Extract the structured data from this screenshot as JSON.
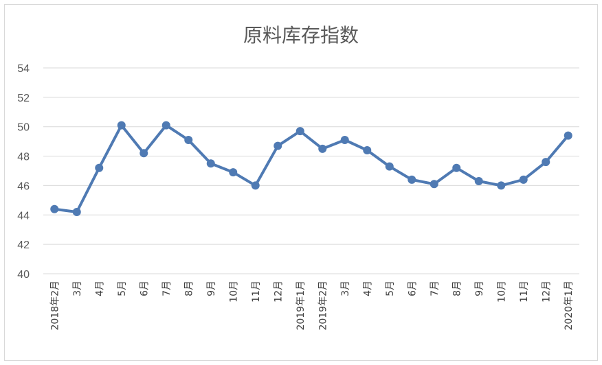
{
  "chart_data": {
    "type": "line",
    "title": "原料库存指数",
    "xlabel": "",
    "ylabel": "",
    "ylim": [
      40,
      54
    ],
    "yticks": [
      40,
      42,
      44,
      46,
      48,
      50,
      52,
      54
    ],
    "grid": true,
    "legend": "none",
    "categories": [
      "2018年2月",
      "3月",
      "4月",
      "5月",
      "6月",
      "7月",
      "8月",
      "9月",
      "10月",
      "11月",
      "12月",
      "2019年1月",
      "2019年2月",
      "3月",
      "4月",
      "5月",
      "6月",
      "7月",
      "8月",
      "9月",
      "10月",
      "11月",
      "12月",
      "2020年1月"
    ],
    "series": [
      {
        "color": "#4f7ab3",
        "values": [
          44.4,
          44.2,
          47.2,
          50.1,
          48.2,
          50.1,
          49.1,
          47.5,
          46.9,
          46.0,
          48.7,
          49.7,
          48.5,
          49.1,
          48.4,
          47.3,
          46.4,
          46.1,
          47.2,
          46.3,
          46.0,
          46.4,
          47.6,
          49.4
        ]
      }
    ]
  }
}
